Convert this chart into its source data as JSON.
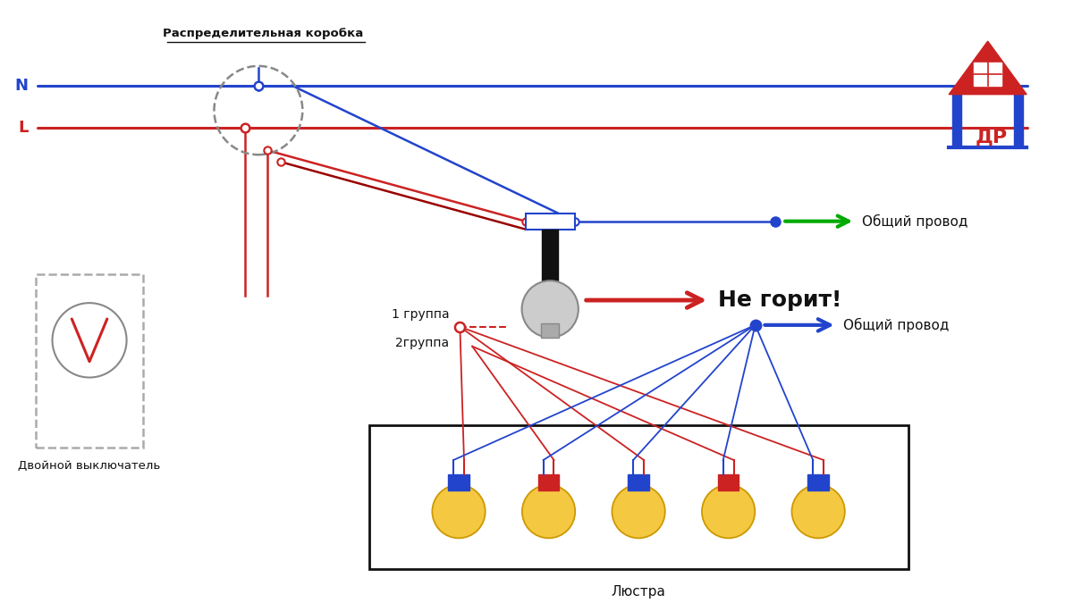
{
  "bg": "#ffffff",
  "blue": "#2244cc",
  "red": "#cc2222",
  "darkred": "#990000",
  "green": "#00aa00",
  "gray": "#888888",
  "lgray": "#aaaaaa",
  "black": "#111111",
  "yellow": "#f5c842",
  "gold": "#cc9900",
  "label_jbox": "Распределительная коробка",
  "label_switch": "Двойной выключатель",
  "label_chandelier": "Люстра",
  "label_ne_gorit": "Не горит!",
  "label_g1": "1 группа",
  "label_g2": "2группа",
  "label_common1": "Общий провод",
  "label_common2": "Общий провод",
  "label_N": "N",
  "label_L": "L"
}
